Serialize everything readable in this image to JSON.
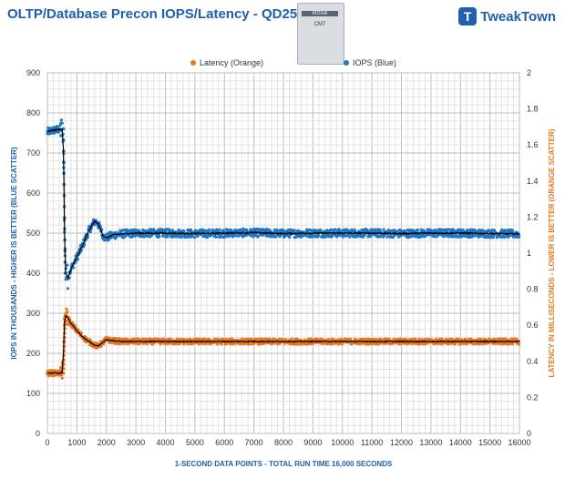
{
  "header": {
    "title": "OLTP/Database Precon IOPS/Latency - QD256",
    "product_brand": "KIOXIA",
    "product_model": "CM7",
    "logo_text": "TweakTown",
    "logo_mark": "T"
  },
  "chart_data": {
    "type": "scatter",
    "xlabel": "1-SECOND  DATA POINTS - TOTAL RUN TIME 16,000 SECONDS",
    "ylabel_left": "IOPS IN THOUSANDS - HIGHER IS BETTER (BLUE SCATTER)",
    "ylabel_right": "LATENCY IN MILLISECONDS - LOWER IS BETTER (ORANGE SCATTER)",
    "xlim": [
      0,
      16000
    ],
    "ylim_left": [
      0,
      900
    ],
    "ylim_right": [
      0,
      2
    ],
    "x_ticks": [
      "0",
      "1000",
      "2000",
      "3000",
      "4000",
      "5000",
      "6000",
      "7000",
      "8000",
      "9000",
      "10000",
      "11000",
      "12000",
      "13000",
      "14000",
      "15000",
      "16000"
    ],
    "y_ticks_left": [
      "0",
      "100",
      "200",
      "300",
      "400",
      "500",
      "600",
      "700",
      "800",
      "900"
    ],
    "y_ticks_right": [
      "0",
      "0.2",
      "0.4",
      "0.6",
      "0.8",
      "1",
      "1.2",
      "1.4",
      "1.6",
      "1.8",
      "2"
    ],
    "grid": true,
    "legend_position": "top-center",
    "legend": [
      "Latency (Orange)",
      "IOPS (Blue)"
    ],
    "colors": {
      "iops": "#1f77c4",
      "latency": "#e8761e",
      "trend": "#000000",
      "grid": "#c8c8c8"
    },
    "series": [
      {
        "name": "IOPS (Blue)",
        "axis": "left",
        "x": [
          0,
          100,
          300,
          500,
          550,
          580,
          620,
          700,
          800,
          1000,
          1200,
          1400,
          1600,
          1700,
          1800,
          1900,
          2000,
          2200,
          2500,
          3000,
          4000,
          5000,
          6000,
          7000,
          8000,
          9000,
          10000,
          11000,
          12000,
          13000,
          14000,
          15000,
          16000
        ],
        "y": [
          752,
          755,
          758,
          760,
          700,
          500,
          400,
          390,
          410,
          440,
          470,
          505,
          530,
          525,
          510,
          492,
          488,
          495,
          498,
          500,
          500,
          499,
          500,
          501,
          499,
          500,
          500,
          500,
          499,
          500,
          500,
          499,
          498
        ],
        "spread": 10
      },
      {
        "name": "Latency (Orange)",
        "axis": "right",
        "x": [
          0,
          100,
          300,
          500,
          550,
          580,
          620,
          700,
          800,
          1000,
          1200,
          1400,
          1600,
          1700,
          1800,
          2000,
          2200,
          2500,
          3000,
          4000,
          5000,
          6000,
          7000,
          8000,
          9000,
          10000,
          11000,
          12000,
          13000,
          14000,
          15000,
          16000
        ],
        "y": [
          0.335,
          0.335,
          0.335,
          0.335,
          0.46,
          0.62,
          0.655,
          0.64,
          0.61,
          0.57,
          0.535,
          0.51,
          0.49,
          0.485,
          0.495,
          0.52,
          0.515,
          0.51,
          0.51,
          0.51,
          0.51,
          0.51,
          0.51,
          0.51,
          0.51,
          0.51,
          0.51,
          0.51,
          0.51,
          0.51,
          0.51,
          0.51
        ],
        "spread": 0.015
      }
    ]
  }
}
